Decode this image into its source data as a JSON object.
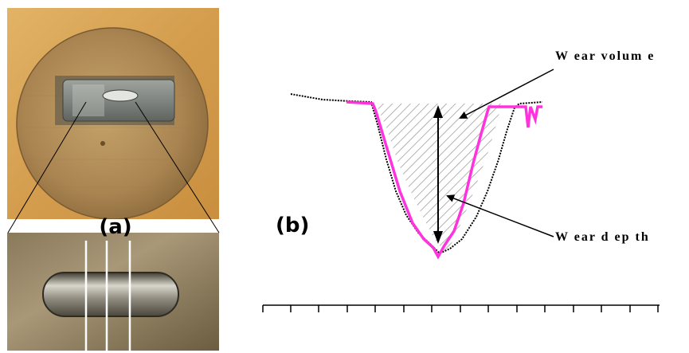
{
  "figure": {
    "panel_a_label": "(a)",
    "panel_b_label": "(b)",
    "annotations": {
      "wear_volume": "W ear volum e",
      "wear_depth": "W ear d ep th"
    },
    "colors": {
      "profile_before": "#000000",
      "profile_after": "#ff33dd",
      "hatch": "#9a9a9a",
      "disc": "#b08a4c",
      "background_wood": "#d7a85a"
    }
  }
}
